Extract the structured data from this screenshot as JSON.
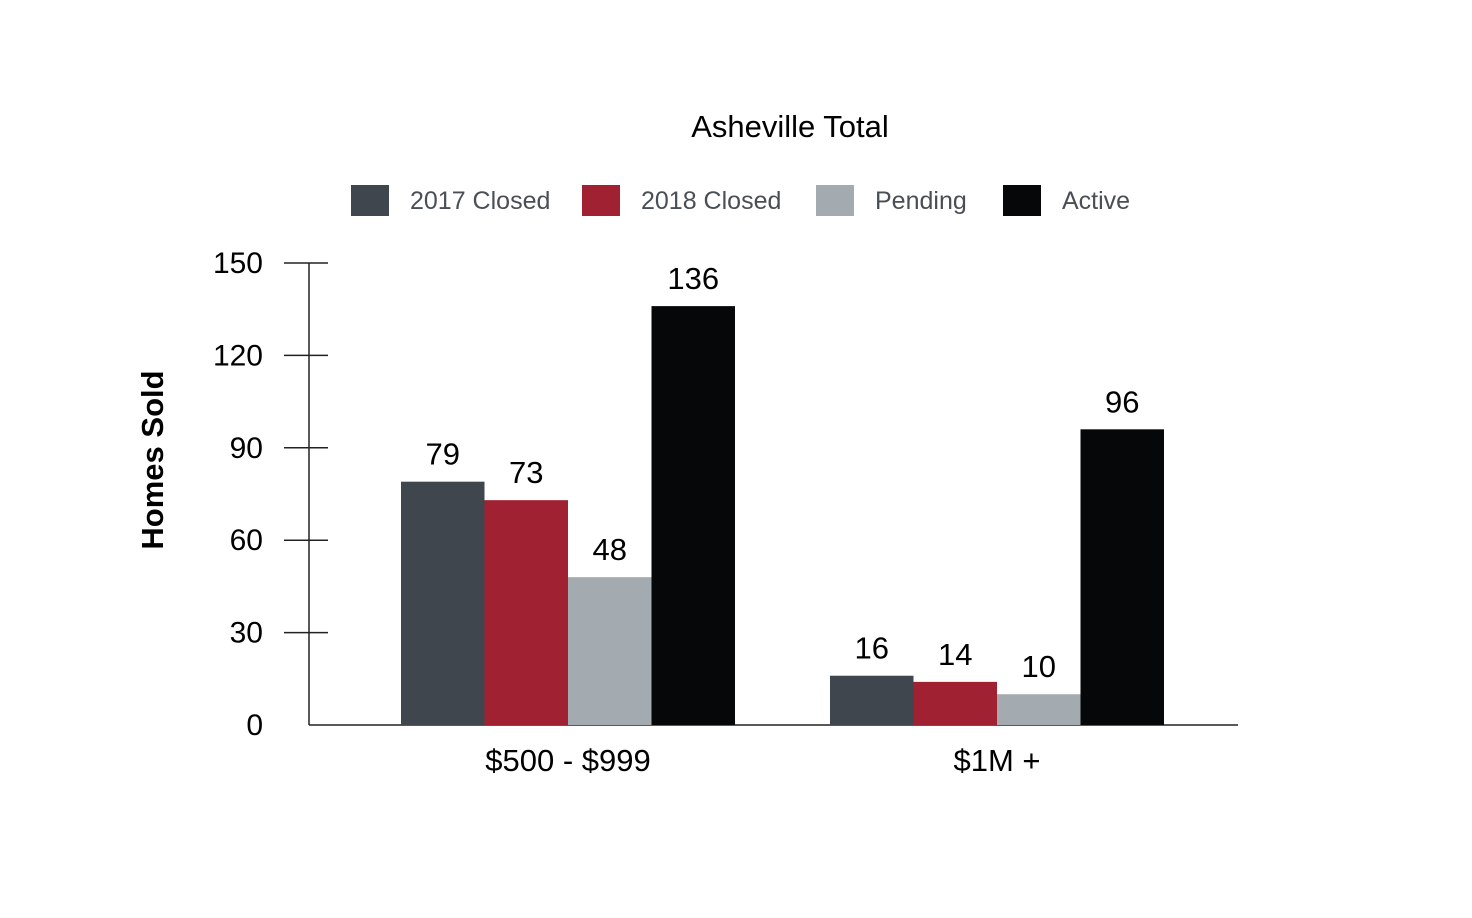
{
  "chart_data": {
    "type": "bar",
    "title": "Asheville Total",
    "xlabel": "",
    "ylabel": "Homes Sold",
    "categories": [
      "$500 - $999",
      "$1M +"
    ],
    "ylim": [
      0,
      150
    ],
    "yticks": [
      0,
      30,
      60,
      90,
      120,
      150
    ],
    "grid": false,
    "legend_position": "top-center",
    "series": [
      {
        "name": "2017 Closed",
        "color": "#40464d",
        "values": [
          79,
          16
        ]
      },
      {
        "name": "2018 Closed",
        "color": "#a02131",
        "values": [
          73,
          14
        ]
      },
      {
        "name": "Pending",
        "color": "#a4abb0",
        "values": [
          48,
          10
        ]
      },
      {
        "name": "Active",
        "color": "#050708",
        "values": [
          136,
          96
        ]
      }
    ]
  }
}
